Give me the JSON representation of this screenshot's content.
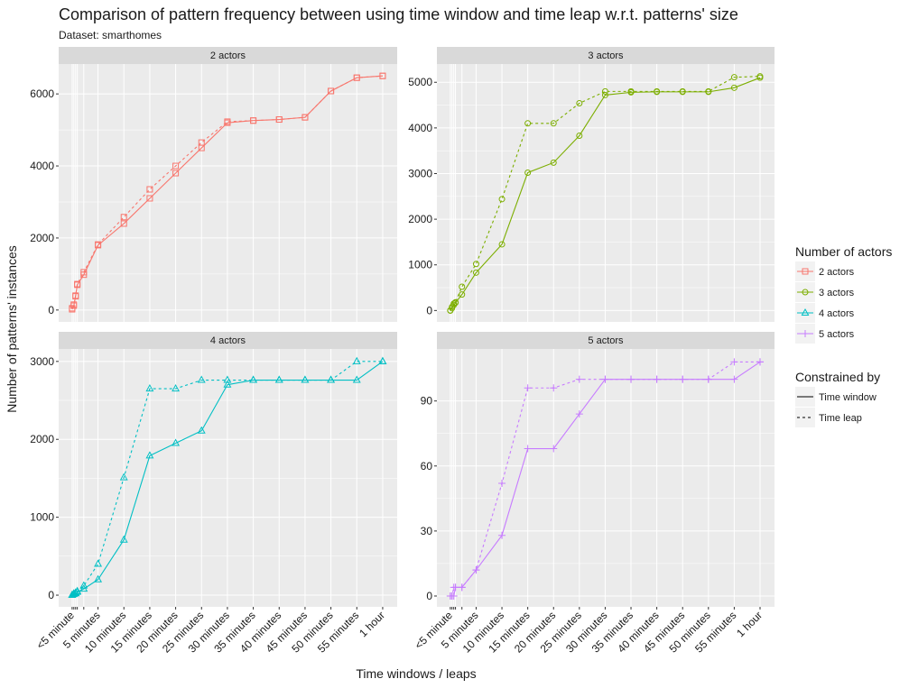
{
  "title": "Comparison of pattern frequency between using time window and time leap w.r.t. patterns' size",
  "subtitle": "Dataset: smarthomes",
  "x_label": "Time windows / leaps",
  "y_label": "Number of patterns' instances",
  "color_legend_title": "Number of actors",
  "linetype_legend": {
    "title": "Constrained by",
    "entries": [
      {
        "name": "Time window",
        "dash": "solid"
      },
      {
        "name": "Time leap",
        "dash": "dashed"
      }
    ]
  },
  "x_axis": {
    "xlim": [
      -2.6,
      62.8
    ],
    "xticks": [
      {
        "value": 0,
        "label": "<5 minute"
      },
      {
        "value": 0.33,
        "label": null
      },
      {
        "value": 0.67,
        "label": null
      },
      {
        "value": 1,
        "label": null
      },
      {
        "value": 2.25,
        "label": null
      },
      {
        "value": 5,
        "label": "5 minutes"
      },
      {
        "value": 10,
        "label": "10 minutes"
      },
      {
        "value": 15,
        "label": "15 minutes"
      },
      {
        "value": 20,
        "label": "20 minutes"
      },
      {
        "value": 25,
        "label": "25 minutes"
      },
      {
        "value": 30,
        "label": "30 minutes"
      },
      {
        "value": 35,
        "label": "35 minutes"
      },
      {
        "value": 40,
        "label": "40 minutes"
      },
      {
        "value": 45,
        "label": "45 minutes"
      },
      {
        "value": 50,
        "label": "50 minutes"
      },
      {
        "value": 55,
        "label": "55 minutes"
      },
      {
        "value": 60,
        "label": "1 hour"
      }
    ]
  },
  "chart_data": [
    {
      "type": "line",
      "title": "2 actors",
      "color": "#F8766D",
      "shape": "square",
      "x": [
        0,
        0.33,
        0.67,
        1,
        2.25,
        5,
        10,
        15,
        20,
        25,
        30,
        35,
        40,
        45,
        50,
        55,
        60
      ],
      "series": [
        {
          "values": [
            20,
            120,
            380,
            700,
            980,
            1800,
            2400,
            3100,
            3800,
            4500,
            5200,
            5260,
            5290,
            5350,
            6080,
            6450,
            6500
          ]
        },
        {
          "values": [
            50,
            150,
            400,
            720,
            1050,
            1820,
            2580,
            3350,
            4000,
            4650,
            5230,
            5260,
            5290,
            5350,
            6080,
            6450,
            6500
          ]
        }
      ],
      "ylim": [
        -330,
        6830
      ],
      "yticks": [
        0,
        2000,
        4000,
        6000
      ]
    },
    {
      "type": "line",
      "title": "3 actors",
      "color": "#7CAE00",
      "shape": "circle",
      "x": [
        0,
        0.33,
        0.67,
        1,
        2.25,
        5,
        10,
        15,
        20,
        25,
        30,
        35,
        40,
        45,
        50,
        55,
        60
      ],
      "series": [
        {
          "values": [
            0,
            50,
            120,
            170,
            350,
            830,
            1450,
            3020,
            3240,
            3830,
            4720,
            4780,
            4790,
            4790,
            4790,
            4880,
            5100
          ]
        },
        {
          "values": [
            0,
            80,
            150,
            180,
            520,
            1020,
            2440,
            4100,
            4100,
            4540,
            4800,
            4800,
            4800,
            4800,
            4800,
            5110,
            5130
          ]
        }
      ],
      "ylim": [
        -250,
        5400
      ],
      "yticks": [
        0,
        1000,
        2000,
        3000,
        4000,
        5000
      ]
    },
    {
      "type": "line",
      "title": "4 actors",
      "color": "#00BFC4",
      "shape": "triangle",
      "x": [
        0,
        0.33,
        0.67,
        1,
        2.25,
        5,
        10,
        15,
        20,
        25,
        30,
        35,
        40,
        45,
        50,
        55,
        60
      ],
      "series": [
        {
          "values": [
            0,
            10,
            20,
            40,
            80,
            200,
            710,
            1790,
            1950,
            2110,
            2700,
            2760,
            2760,
            2760,
            2760,
            2760,
            3000
          ]
        },
        {
          "values": [
            0,
            20,
            30,
            50,
            120,
            400,
            1510,
            2650,
            2650,
            2760,
            2760,
            2760,
            2760,
            2760,
            2760,
            3000,
            3000
          ]
        }
      ],
      "ylim": [
        -150,
        3160
      ],
      "yticks": [
        0,
        1000,
        2000,
        3000
      ]
    },
    {
      "type": "line",
      "title": "5 actors",
      "color": "#C77CFF",
      "shape": "plus",
      "x": [
        0,
        0.33,
        0.67,
        1,
        2.25,
        5,
        10,
        15,
        20,
        25,
        30,
        35,
        40,
        45,
        50,
        55,
        60
      ],
      "series": [
        {
          "values": [
            0,
            0,
            0,
            4,
            4,
            12,
            28,
            68,
            68,
            84,
            100,
            100,
            100,
            100,
            100,
            100,
            108
          ]
        },
        {
          "values": [
            0,
            0,
            4,
            4,
            4,
            12,
            52,
            96,
            96,
            100,
            100,
            100,
            100,
            100,
            100,
            108,
            108
          ]
        }
      ],
      "ylim": [
        -5,
        114
      ],
      "yticks": [
        0,
        30,
        60,
        90
      ]
    }
  ]
}
